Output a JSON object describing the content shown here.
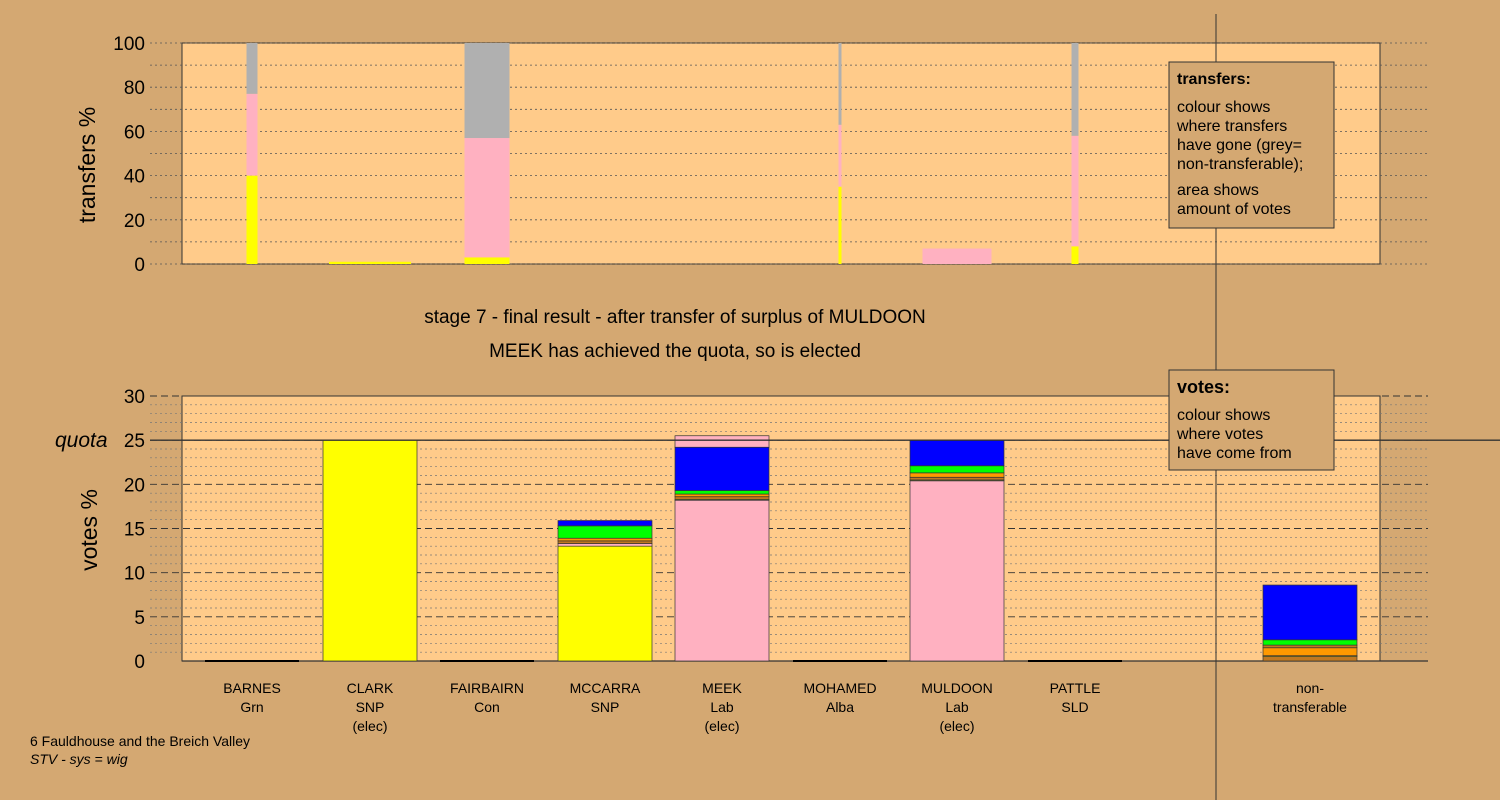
{
  "colors": {
    "background": "#d4a872",
    "plot_area": "#ffcb8a",
    "SNP": "#ffff00",
    "Lab": "#ffb1c1",
    "Grn": "#00ff00",
    "Con": "#0000ff",
    "Alba": "#c07820",
    "SLD": "#ff9900",
    "non_transferable": "#b0b0b0"
  },
  "stage_title": "stage 7 - final result - after transfer of surplus of MULDOON",
  "stage_subtitle": "MEEK has achieved the quota, so is elected",
  "footer": {
    "ward": "6 Fauldhouse and the Breich Valley",
    "system": "STV - sys = wig"
  },
  "legend_transfers": {
    "title": "transfers:",
    "line1": "colour shows",
    "line2": "where transfers",
    "line3": "have gone (grey=",
    "line4": "non-transferable);",
    "line5": "area shows",
    "line6": "amount of votes"
  },
  "legend_votes": {
    "title": "votes:",
    "line1": "colour shows",
    "line2": "where votes",
    "line3": "have come from"
  },
  "chart_data": [
    {
      "type": "bar",
      "stacked": true,
      "ylabel": "transfers %",
      "ylim": [
        0,
        100
      ],
      "yticks": [
        0,
        20,
        40,
        60,
        80,
        100
      ],
      "note": "bar width shows relative amount of votes transferred",
      "bars": [
        {
          "candidate": "BARNES",
          "width_rel": 0.11,
          "segments": [
            {
              "party": "SNP",
              "value": 40
            },
            {
              "party": "Lab",
              "value": 37
            },
            {
              "party": "non_transferable",
              "value": 23
            }
          ]
        },
        {
          "candidate": "CLARK",
          "width_rel": 0.82,
          "segments": [
            {
              "party": "SNP",
              "value": 1
            }
          ]
        },
        {
          "candidate": "FAIRBAIRN",
          "width_rel": 0.45,
          "segments": [
            {
              "party": "SNP",
              "value": 3
            },
            {
              "party": "Lab",
              "value": 54
            },
            {
              "party": "non_transferable",
              "value": 43
            }
          ]
        },
        {
          "candidate": "MOHAMED",
          "width_rel": 0.03,
          "segments": [
            {
              "party": "SNP",
              "value": 35
            },
            {
              "party": "Lab",
              "value": 28
            },
            {
              "party": "non_transferable",
              "value": 37
            }
          ]
        },
        {
          "candidate": "MULDOON",
          "width_rel": 0.69,
          "segments": [
            {
              "party": "Lab",
              "value": 7
            }
          ]
        },
        {
          "candidate": "PATTLE",
          "width_rel": 0.07,
          "segments": [
            {
              "party": "SNP",
              "value": 8
            },
            {
              "party": "Lab",
              "value": 50
            },
            {
              "party": "non_transferable",
              "value": 42
            }
          ]
        }
      ]
    },
    {
      "type": "bar",
      "stacked": true,
      "ylabel": "votes %",
      "ylim": [
        0,
        30
      ],
      "yticks": [
        0,
        5,
        10,
        15,
        20,
        25,
        30
      ],
      "quota": 25,
      "quota_label": "quota",
      "bars": [
        {
          "candidate": "BARNES",
          "party": "Grn",
          "elected": "",
          "segments": []
        },
        {
          "candidate": "CLARK",
          "party": "SNP",
          "elected": "(elec)",
          "segments": [
            {
              "party": "SNP",
              "value": 25
            }
          ]
        },
        {
          "candidate": "FAIRBAIRN",
          "party": "Con",
          "elected": "",
          "segments": []
        },
        {
          "candidate": "MCCARRA",
          "party": "SNP",
          "elected": "",
          "segments": [
            {
              "party": "SNP",
              "value": 13
            },
            {
              "party": "Lab",
              "value": 0.3
            },
            {
              "party": "Alba",
              "value": 0.3
            },
            {
              "party": "SLD",
              "value": 0.3
            },
            {
              "party": "Grn",
              "value": 1.4
            },
            {
              "party": "Con",
              "value": 0.6
            }
          ]
        },
        {
          "candidate": "MEEK",
          "party": "Lab",
          "elected": "(elec)",
          "segments": [
            {
              "party": "Lab",
              "value": 18.2
            },
            {
              "party": "SNP",
              "value": 0.1
            },
            {
              "party": "Alba",
              "value": 0.3
            },
            {
              "party": "SLD",
              "value": 0.3
            },
            {
              "party": "Grn",
              "value": 0.4
            },
            {
              "party": "Con",
              "value": 4.9
            },
            {
              "party": "Lab",
              "value": 1.3
            }
          ]
        },
        {
          "candidate": "MOHAMED",
          "party": "Alba",
          "elected": "",
          "segments": []
        },
        {
          "candidate": "MULDOON",
          "party": "Lab",
          "elected": "(elec)",
          "segments": [
            {
              "party": "Lab",
              "value": 20.4
            },
            {
              "party": "SNP",
              "value": 0.1
            },
            {
              "party": "Alba",
              "value": 0.3
            },
            {
              "party": "SLD",
              "value": 0.5
            },
            {
              "party": "Grn",
              "value": 0.8
            },
            {
              "party": "Con",
              "value": 2.9
            }
          ]
        },
        {
          "candidate": "PATTLE",
          "party": "SLD",
          "elected": "",
          "segments": []
        },
        {
          "candidate": "non-",
          "party": "transferable",
          "elected": "",
          "segments": [
            {
              "party": "Alba",
              "value": 0.5
            },
            {
              "party": "SNP",
              "value": 0.1
            },
            {
              "party": "SLD",
              "value": 0.9
            },
            {
              "party": "Alba",
              "value": 0.3
            },
            {
              "party": "Grn",
              "value": 0.6
            },
            {
              "party": "Con",
              "value": 6.2
            }
          ]
        }
      ]
    }
  ]
}
